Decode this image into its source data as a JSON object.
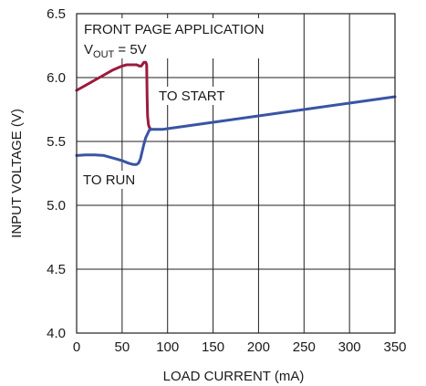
{
  "chart_data": {
    "type": "line",
    "xlabel": "LOAD CURRENT (mA)",
    "ylabel": "INPUT VOLTAGE (V)",
    "xlim": [
      0,
      350
    ],
    "ylim": [
      4.0,
      6.5
    ],
    "xticks": [
      "0",
      "50",
      "100",
      "150",
      "200",
      "250",
      "300",
      "350"
    ],
    "yticks": [
      "4.0",
      "4.5",
      "5.0",
      "5.5",
      "6.0",
      "6.5"
    ],
    "grid": true,
    "annotations": {
      "title_line1": "FRONT PAGE APPLICATION",
      "vout_prefix": "V",
      "vout_sub": "OUT",
      "vout_suffix": " = 5V",
      "to_start": "TO START",
      "to_run": "TO RUN"
    },
    "series": [
      {
        "color": "#9b1b3d",
        "x": [
          0,
          10,
          25,
          40,
          50,
          55,
          62,
          66,
          69,
          71,
          72,
          74,
          76,
          77,
          77.5,
          78,
          79,
          80,
          81
        ],
        "y": [
          5.9,
          5.94,
          6.0,
          6.06,
          6.09,
          6.1,
          6.1,
          6.1,
          6.09,
          6.09,
          6.1,
          6.12,
          6.12,
          6.1,
          5.85,
          5.7,
          5.63,
          5.61,
          5.6
        ]
      },
      {
        "color": "#3a54a4",
        "x": [
          0,
          10,
          20,
          30,
          40,
          50,
          57,
          62,
          66,
          68,
          70,
          72,
          74,
          76,
          78,
          80,
          83,
          88,
          95,
          100,
          150,
          200,
          250,
          300,
          350
        ],
        "y": [
          5.39,
          5.395,
          5.395,
          5.39,
          5.37,
          5.35,
          5.33,
          5.32,
          5.32,
          5.33,
          5.36,
          5.42,
          5.48,
          5.53,
          5.56,
          5.59,
          5.595,
          5.595,
          5.595,
          5.6,
          5.65,
          5.7,
          5.75,
          5.8,
          5.85
        ]
      }
    ]
  }
}
